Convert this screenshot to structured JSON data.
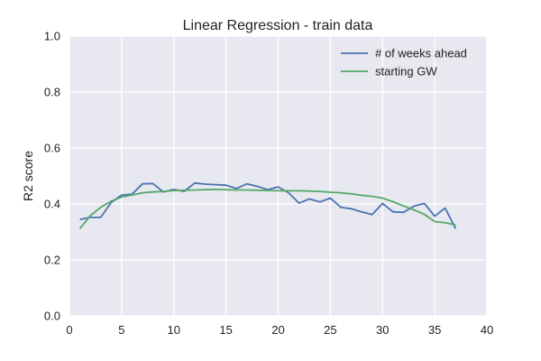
{
  "chart_data": {
    "type": "line",
    "title": "Linear Regression - train data",
    "xlabel": "",
    "ylabel": "R2 score",
    "xlim": [
      0,
      40
    ],
    "ylim": [
      0.0,
      1.0
    ],
    "xticks": [
      0,
      5,
      10,
      15,
      20,
      25,
      30,
      35,
      40
    ],
    "yticks": [
      0.0,
      0.2,
      0.4,
      0.6,
      0.8,
      1.0
    ],
    "xtick_labels": [
      "0",
      "5",
      "10",
      "15",
      "20",
      "25",
      "30",
      "35",
      "40"
    ],
    "ytick_labels": [
      "0.0",
      "0.2",
      "0.4",
      "0.6",
      "0.8",
      "1.0"
    ],
    "grid": true,
    "legend_position": "top-right",
    "background": "#e8e8f0",
    "series": [
      {
        "name": "# of weeks ahead",
        "color": "#4c72b0",
        "x": [
          1,
          2,
          3,
          4,
          5,
          6,
          7,
          8,
          9,
          10,
          11,
          12,
          13,
          14,
          15,
          16,
          17,
          18,
          19,
          20,
          21,
          22,
          23,
          24,
          25,
          26,
          27,
          28,
          29,
          30,
          31,
          32,
          33,
          34,
          35,
          36,
          37
        ],
        "y": [
          0.345,
          0.352,
          0.352,
          0.405,
          0.432,
          0.435,
          0.472,
          0.473,
          0.443,
          0.452,
          0.445,
          0.475,
          0.471,
          0.469,
          0.467,
          0.455,
          0.472,
          0.463,
          0.451,
          0.461,
          0.44,
          0.403,
          0.418,
          0.407,
          0.421,
          0.388,
          0.383,
          0.372,
          0.362,
          0.402,
          0.372,
          0.37,
          0.392,
          0.402,
          0.356,
          0.385,
          0.312
        ]
      },
      {
        "name": "starting GW",
        "color": "#55a868",
        "x": [
          1,
          2,
          3,
          4,
          5,
          6,
          7,
          8,
          9,
          10,
          11,
          12,
          13,
          14,
          15,
          16,
          17,
          18,
          19,
          20,
          21,
          22,
          23,
          24,
          25,
          26,
          27,
          28,
          29,
          30,
          31,
          32,
          33,
          34,
          35,
          36,
          37
        ],
        "y": [
          0.312,
          0.358,
          0.388,
          0.41,
          0.425,
          0.432,
          0.44,
          0.443,
          0.445,
          0.448,
          0.449,
          0.45,
          0.451,
          0.452,
          0.451,
          0.45,
          0.45,
          0.449,
          0.448,
          0.447,
          0.447,
          0.447,
          0.446,
          0.445,
          0.442,
          0.44,
          0.436,
          0.431,
          0.427,
          0.421,
          0.408,
          0.393,
          0.379,
          0.363,
          0.337,
          0.333,
          0.325
        ]
      }
    ]
  }
}
